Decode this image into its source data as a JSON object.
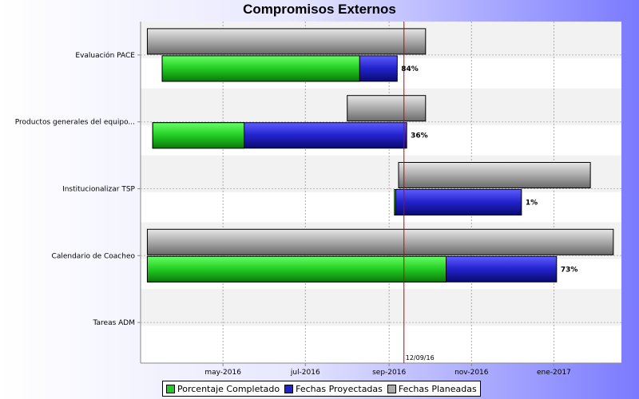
{
  "chart_data": {
    "type": "gantt",
    "title": "Compromisos Externos",
    "x_axis": {
      "range": [
        "2016-03-01",
        "2017-02-20"
      ],
      "ticks": [
        {
          "date": "2016-05-01",
          "label": "may-2016"
        },
        {
          "date": "2016-07-01",
          "label": "jul-2016"
        },
        {
          "date": "2016-09-01",
          "label": "sep-2016"
        },
        {
          "date": "2016-11-01",
          "label": "nov-2016"
        },
        {
          "date": "2017-01-01",
          "label": "ene-2017"
        }
      ]
    },
    "today": {
      "date": "2016-09-12",
      "label": "12/09/16",
      "color": "#cc0000"
    },
    "categories": [
      {
        "name": "Evaluación PACE",
        "planned": [
          "2016-03-06",
          "2016-09-28"
        ],
        "projected": [
          "2016-03-17",
          "2016-09-07"
        ],
        "percent_complete": 84,
        "percent_label": "84%"
      },
      {
        "name": "Productos generales del equipo...",
        "planned": [
          "2016-08-01",
          "2016-09-28"
        ],
        "projected": [
          "2016-03-10",
          "2016-09-14"
        ],
        "percent_complete": 36,
        "percent_label": "36%"
      },
      {
        "name": "Institucionalizar TSP",
        "planned": [
          "2016-09-08",
          "2017-01-28"
        ],
        "projected": [
          "2016-09-05",
          "2016-12-08"
        ],
        "percent_complete": 1,
        "percent_label": "1%"
      },
      {
        "name": "Calendario de Coacheo",
        "planned": [
          "2016-03-06",
          "2017-02-14"
        ],
        "projected": [
          "2016-03-06",
          "2017-01-03"
        ],
        "percent_complete": 73,
        "percent_label": "73%"
      },
      {
        "name": "Tareas ADM",
        "planned": null,
        "projected": null,
        "percent_complete": null,
        "percent_label": ""
      }
    ],
    "legend": {
      "placement": "bottom",
      "items": [
        {
          "label": "Porcentaje Completado",
          "color": "#22cc22"
        },
        {
          "label": "Fechas Proyectadas",
          "color": "#2222cc"
        },
        {
          "label": "Fechas Planeadas",
          "color": "#aaaaaa"
        }
      ]
    },
    "grid": true
  }
}
